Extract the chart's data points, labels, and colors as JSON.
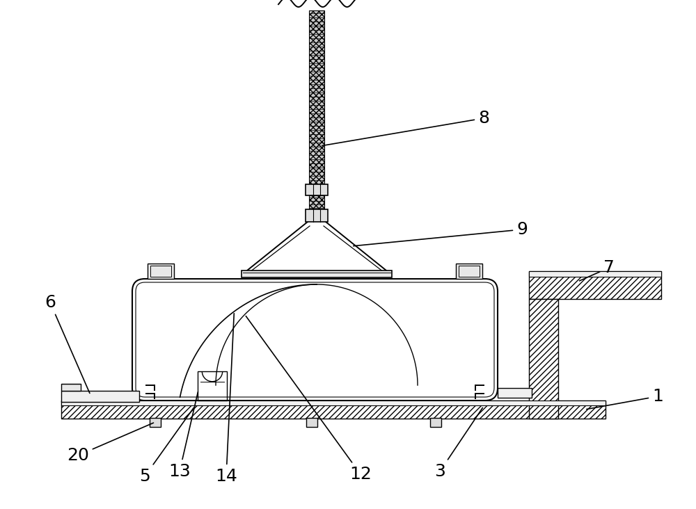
{
  "bg_color": "#ffffff",
  "line_color": "#000000",
  "label_fontsize": 18,
  "fig_width": 10.0,
  "fig_height": 7.32
}
